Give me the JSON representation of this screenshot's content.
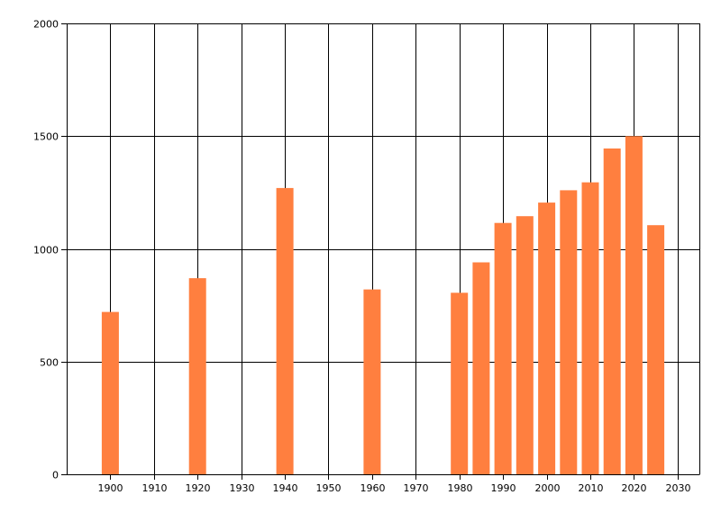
{
  "chart_data": {
    "type": "bar",
    "title": "",
    "xlabel": "",
    "ylabel": "",
    "x": [
      1900,
      1920,
      1940,
      1960,
      1980,
      1985,
      1990,
      1995,
      2000,
      2005,
      2010,
      2015,
      2020,
      2025
    ],
    "values": [
      720,
      870,
      1270,
      820,
      805,
      940,
      1115,
      1145,
      1205,
      1260,
      1295,
      1445,
      1500,
      1105
    ],
    "xlim": [
      1890,
      2035
    ],
    "ylim": [
      0,
      2000
    ],
    "x_ticks": [
      "1900",
      "1910",
      "1920",
      "1930",
      "1940",
      "1950",
      "1960",
      "1970",
      "1980",
      "1990",
      "2000",
      "2010",
      "2020",
      "2030"
    ],
    "y_ticks": [
      "0",
      "500",
      "1000",
      "1500",
      "2000"
    ],
    "bar_color": "#ff7f3f",
    "grid": true,
    "legend": "none"
  }
}
